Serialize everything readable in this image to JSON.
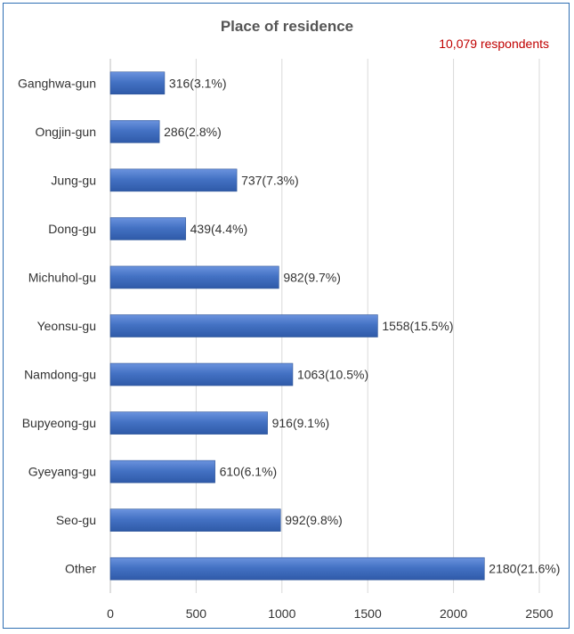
{
  "chart_data": {
    "type": "bar",
    "orientation": "horizontal",
    "title": "Place of residence",
    "annotation": "10,079 respondents",
    "categories": [
      "Ganghwa-gun",
      "Ongjin-gun",
      "Jung-gu",
      "Dong-gu",
      "Michuhol-gu",
      "Yeonsu-gu",
      "Namdong-gu",
      "Bupyeong-gu",
      "Gyeyang-gu",
      "Seo-gu",
      "Other"
    ],
    "values": [
      316,
      286,
      737,
      439,
      982,
      1558,
      1063,
      916,
      610,
      992,
      2180
    ],
    "data_labels": [
      "316(3.1%)",
      "286(2.8%)",
      "737(7.3%)",
      "439(4.4%)",
      "982(9.7%)",
      "1558(15.5%)",
      "1063(10.5%)",
      "916(9.1%)",
      "610(6.1%)",
      "992(9.8%)",
      "2180(21.6%)"
    ],
    "xlim": [
      0,
      2500
    ],
    "xticks": [
      0,
      500,
      1000,
      1500,
      2000,
      2500
    ],
    "grid": true,
    "legend": "none"
  },
  "colors": {
    "bar": "#4472c4",
    "bar_edge": "#2f5597",
    "annotation": "#c00000",
    "grid": "#d9d9d9"
  }
}
